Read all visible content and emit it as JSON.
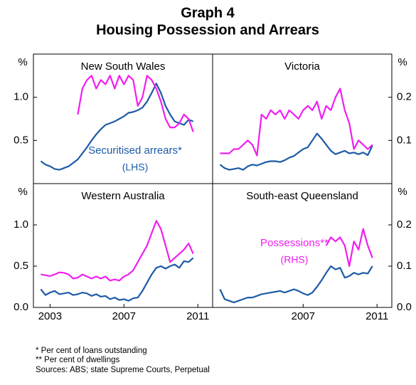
{
  "title": "Graph 4",
  "subtitle": "Housing Possession and Arrears",
  "notes": [
    "*   Per cent of loans outstanding",
    "** Per cent of dwellings",
    "Sources: ABS; state Supreme Courts, Perpetual"
  ],
  "chart_data": [
    {
      "type": "line",
      "title": "New South Wales",
      "x": [
        2002.5,
        2002.75,
        2003,
        2003.25,
        2003.5,
        2003.75,
        2004,
        2004.25,
        2004.5,
        2004.75,
        2005,
        2005.25,
        2005.5,
        2005.75,
        2006,
        2006.25,
        2006.5,
        2006.75,
        2007,
        2007.25,
        2007.5,
        2007.75,
        2008,
        2008.25,
        2008.5,
        2008.75,
        2009,
        2009.25,
        2009.5,
        2009.75,
        2010,
        2010.25,
        2010.5,
        2010.75
      ],
      "xlim": [
        2002.1,
        2011.8
      ],
      "ylim": [
        0,
        1.5
      ],
      "y2lim": [
        0,
        0.3
      ],
      "ylabel": "%",
      "yticks": [
        {
          "value": 1,
          "label": "1.0"
        },
        0.5
      ],
      "annotations": [
        "Securitised arrears*",
        "(LHS)"
      ],
      "series": [
        {
          "color": "#1c5aa6",
          "values": [
            0.26,
            0.22,
            0.2,
            0.17,
            0.16,
            0.18,
            0.2,
            0.24,
            0.28,
            0.35,
            0.42,
            0.5,
            0.57,
            0.63,
            0.68,
            0.7,
            0.72,
            0.75,
            0.78,
            0.82,
            0.83,
            0.85,
            0.88,
            0.95,
            1.05,
            1.16,
            1.05,
            0.9,
            0.8,
            0.72,
            0.7,
            0.68,
            0.74,
            0.72
          ]
        },
        {
          "color": "#f01ef0",
          "axis": "y2",
          "values": [
            null,
            null,
            null,
            null,
            null,
            null,
            null,
            null,
            0.16,
            0.22,
            0.24,
            0.25,
            0.22,
            0.24,
            0.23,
            0.25,
            0.22,
            0.25,
            0.23,
            0.25,
            0.24,
            0.18,
            0.2,
            0.25,
            0.24,
            0.22,
            0.19,
            0.15,
            0.13,
            0.13,
            0.14,
            0.16,
            0.15,
            0.12
          ]
        }
      ]
    },
    {
      "type": "line",
      "title": "Victoria",
      "x": [
        2002.5,
        2002.75,
        2003,
        2003.25,
        2003.5,
        2003.75,
        2004,
        2004.25,
        2004.5,
        2004.75,
        2005,
        2005.25,
        2005.5,
        2005.75,
        2006,
        2006.25,
        2006.5,
        2006.75,
        2007,
        2007.25,
        2007.5,
        2007.75,
        2008,
        2008.25,
        2008.5,
        2008.75,
        2009,
        2009.25,
        2009.5,
        2009.75,
        2010,
        2010.25,
        2010.5,
        2010.75
      ],
      "xlim": [
        2002.1,
        2011.8
      ],
      "ylim": [
        0,
        1.5
      ],
      "y2lim": [
        0,
        0.3
      ],
      "y2label": "%",
      "y2ticks": [
        0.2,
        0.1
      ],
      "series": [
        {
          "color": "#1c5aa6",
          "values": [
            0.22,
            0.18,
            0.16,
            0.17,
            0.18,
            0.16,
            0.2,
            0.22,
            0.21,
            0.23,
            0.25,
            0.26,
            0.26,
            0.25,
            0.27,
            0.3,
            0.32,
            0.36,
            0.4,
            0.42,
            0.5,
            0.58,
            0.52,
            0.45,
            0.38,
            0.34,
            0.36,
            0.38,
            0.35,
            0.36,
            0.34,
            0.36,
            0.33,
            0.44
          ]
        },
        {
          "color": "#f01ef0",
          "axis": "y2",
          "values": [
            0.07,
            0.07,
            0.07,
            0.08,
            0.08,
            0.09,
            0.1,
            0.09,
            0.065,
            0.16,
            0.15,
            0.17,
            0.16,
            0.17,
            0.15,
            0.17,
            0.16,
            0.15,
            0.17,
            0.18,
            0.17,
            0.19,
            0.15,
            0.18,
            0.17,
            0.2,
            0.22,
            0.17,
            0.14,
            0.08,
            0.1,
            0.09,
            0.08,
            0.09
          ]
        }
      ]
    },
    {
      "type": "line",
      "title": "Western Australia",
      "x": [
        2002.5,
        2002.75,
        2003,
        2003.25,
        2003.5,
        2003.75,
        2004,
        2004.25,
        2004.5,
        2004.75,
        2005,
        2005.25,
        2005.5,
        2005.75,
        2006,
        2006.25,
        2006.5,
        2006.75,
        2007,
        2007.25,
        2007.5,
        2007.75,
        2008,
        2008.25,
        2008.5,
        2008.75,
        2009,
        2009.25,
        2009.5,
        2009.75,
        2010,
        2010.25,
        2010.5,
        2010.75
      ],
      "xlim": [
        2002.1,
        2011.8
      ],
      "ylim": [
        0,
        1.5
      ],
      "y2lim": [
        0,
        0.3
      ],
      "ylabel": "%",
      "yticks": [
        {
          "value": 1,
          "label": "1.0"
        },
        0.5,
        {
          "value": 0,
          "label": "0.0"
        }
      ],
      "xticks": [
        2003,
        2007,
        2011
      ],
      "series": [
        {
          "color": "#1c5aa6",
          "values": [
            0.22,
            0.15,
            0.18,
            0.2,
            0.16,
            0.17,
            0.18,
            0.15,
            0.16,
            0.18,
            0.17,
            0.14,
            0.16,
            0.13,
            0.14,
            0.1,
            0.12,
            0.09,
            0.1,
            0.08,
            0.11,
            0.12,
            0.2,
            0.3,
            0.4,
            0.48,
            0.5,
            0.47,
            0.5,
            0.52,
            0.48,
            0.56,
            0.55,
            0.6
          ]
        },
        {
          "color": "#f01ef0",
          "axis": "y2",
          "values": [
            0.08,
            0.078,
            0.076,
            0.08,
            0.085,
            0.084,
            0.08,
            0.07,
            0.072,
            0.08,
            0.075,
            0.07,
            0.075,
            0.07,
            0.075,
            0.065,
            0.068,
            0.065,
            0.075,
            0.08,
            0.09,
            0.11,
            0.13,
            0.15,
            0.18,
            0.21,
            0.19,
            0.15,
            0.11,
            0.12,
            0.13,
            0.14,
            0.155,
            0.13
          ]
        }
      ]
    },
    {
      "type": "line",
      "title": "South-east Queensland",
      "x": [
        2002.5,
        2002.75,
        2003,
        2003.25,
        2003.5,
        2003.75,
        2004,
        2004.25,
        2004.5,
        2004.75,
        2005,
        2005.25,
        2005.5,
        2005.75,
        2006,
        2006.25,
        2006.5,
        2006.75,
        2007,
        2007.25,
        2007.5,
        2007.75,
        2008,
        2008.25,
        2008.5,
        2008.75,
        2009,
        2009.25,
        2009.5,
        2009.75,
        2010,
        2010.25,
        2010.5,
        2010.75
      ],
      "xlim": [
        2002.1,
        2011.8
      ],
      "ylim": [
        0,
        1.5
      ],
      "y2lim": [
        0,
        0.3
      ],
      "y2label": "%",
      "y2ticks": [
        0.2,
        0.1,
        {
          "value": 0,
          "label": "0.0"
        }
      ],
      "xticks": [
        2007,
        2011
      ],
      "annotations": [
        "Possessions**",
        "(RHS)"
      ],
      "series": [
        {
          "color": "#1c5aa6",
          "values": [
            0.22,
            0.1,
            0.08,
            0.06,
            0.08,
            0.1,
            0.12,
            0.12,
            0.14,
            0.16,
            0.17,
            0.18,
            0.19,
            0.2,
            0.18,
            0.2,
            0.22,
            0.2,
            0.17,
            0.15,
            0.18,
            0.25,
            0.33,
            0.42,
            0.5,
            0.46,
            0.48,
            0.36,
            0.38,
            0.42,
            0.4,
            0.42,
            0.41,
            0.5
          ]
        },
        {
          "color": "#f01ef0",
          "axis": "y2",
          "values": [
            null,
            null,
            null,
            null,
            null,
            null,
            null,
            null,
            null,
            null,
            null,
            null,
            null,
            null,
            null,
            null,
            null,
            null,
            null,
            null,
            null,
            null,
            null,
            0.15,
            0.17,
            0.16,
            0.17,
            0.15,
            0.1,
            0.16,
            0.14,
            0.19,
            0.15,
            0.12
          ]
        }
      ]
    }
  ]
}
